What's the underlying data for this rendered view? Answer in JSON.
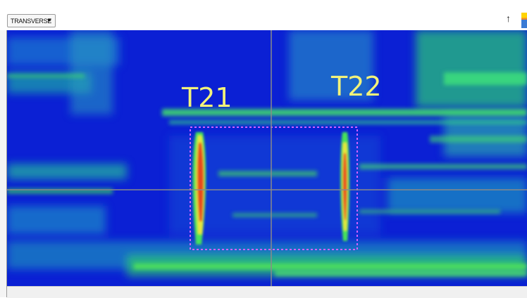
{
  "toolbar": {
    "view_mode": "TRANSVERSE",
    "up_arrow_glyph": "↑",
    "up_arrow_icon": "up-arrow-icon",
    "dropdown_icon": "chevron-down-icon"
  },
  "scan": {
    "indications": [
      {
        "label": "T21"
      },
      {
        "label": "T22"
      }
    ],
    "colors": {
      "background": "#0a1fd6",
      "low_signal": "#1aa0c8",
      "mid_signal": "#3ad85a",
      "high_signal": "#e6e63a",
      "peak_signal": "#e83a1e",
      "cursor_line": "#8a8a8a",
      "selection_box": "#d060ff",
      "label_text": "#f2f27a"
    }
  }
}
